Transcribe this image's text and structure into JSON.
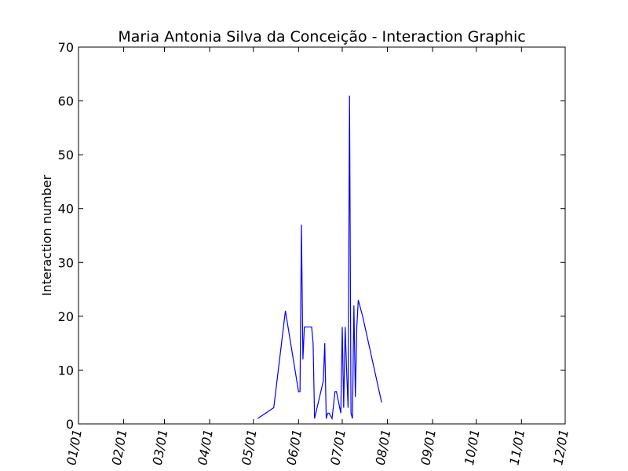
{
  "chart_data": {
    "type": "line",
    "title": "Maria Antonia Silva da Conceição - Interaction Graphic",
    "xlabel": "",
    "ylabel": "Interaction number",
    "ylim": [
      0,
      70
    ],
    "yticks": [
      0,
      10,
      20,
      30,
      40,
      50,
      60,
      70
    ],
    "xlim": [
      "01/01",
      "12/01"
    ],
    "xticks": [
      "01/01",
      "02/01",
      "03/01",
      "04/01",
      "05/01",
      "06/01",
      "07/01",
      "08/01",
      "09/01",
      "10/01",
      "11/01",
      "12/01"
    ],
    "grid": false,
    "legend": "none",
    "series": [
      {
        "color": "#0000ff",
        "x": [
          "05/04",
          "05/15",
          "05/23",
          "05/26",
          "06/01",
          "06/02",
          "06/03",
          "06/04",
          "06/05",
          "06/06",
          "06/10",
          "06/11",
          "06/12",
          "06/18",
          "06/19",
          "06/20",
          "06/21",
          "06/22",
          "06/24",
          "06/26",
          "06/27",
          "06/30",
          "07/01",
          "07/02",
          "07/03",
          "07/04",
          "07/05",
          "07/06",
          "07/07",
          "07/08",
          "07/09",
          "07/10",
          "07/11",
          "07/12",
          "07/15",
          "07/28"
        ],
        "y": [
          1,
          3,
          21,
          16,
          6,
          6,
          37,
          12,
          18,
          18,
          18,
          15,
          1,
          8,
          15,
          1,
          2,
          2,
          1,
          6,
          6,
          2,
          18,
          3,
          18,
          10,
          3,
          61,
          2,
          1,
          22,
          5,
          18,
          23,
          20,
          4
        ]
      }
    ]
  }
}
